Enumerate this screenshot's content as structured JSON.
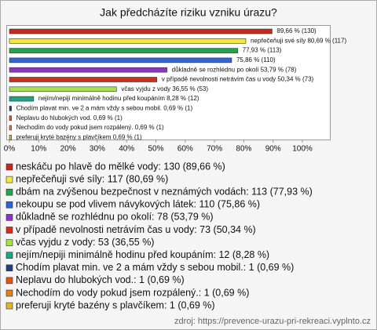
{
  "chart_data": {
    "type": "bar",
    "orientation": "horizontal",
    "title": "Jak předcházíte riziku vzniku úrazu?",
    "categories": [
      "neskáču po hlavě do mělké vody",
      "nepřečeňuji své síly",
      "dbám na zvýšenou bezpečnost v neznámých vodách",
      "nekoupu se pod vlivem návykových látek",
      "důkladně se rozhlédnu po okolí",
      "v případě nevolnosti netrávím čas u vody",
      "včas vyjdu z vody",
      "nejím/nepiji minimálně hodinu před koupáním",
      "Chodím plavat min. ve 2 a mám vždy s sebou mobil.",
      "Neplavu do hlubokých vod.",
      "Nechodím do vody pokud jsem rozpálený.",
      "preferuji kryté bazény s plavčíkem"
    ],
    "values": [
      89.66,
      80.69,
      77.93,
      75.86,
      53.79,
      50.34,
      36.55,
      8.28,
      0.69,
      0.69,
      0.69,
      0.69
    ],
    "value_labels": [
      "89,66 % (130)",
      "nepřečeňuji své síly 80,69 % (117)",
      "77,93 % (113)",
      "75,86 % (110)",
      "důkladně se rozhlédnu po okolí 53,79 % (78)",
      "v případě nevolnosti netrávím čas u vody 50,34 % (73)",
      "včas vyjdu z vody 36,55 % (53)",
      "nejím/nepiji minimálně hodinu před koupáním 8,28 % (12)",
      "Chodím plavat min. ve 2 a mám vždy s sebou mobil. 0,69 % (1)",
      "Neplavu do hlubokých vod. 0,69 % (1)",
      "Nechodím do vody pokud jsem rozpálený. 0,69 % (1)",
      "preferuji kryté bazény s plavčíkem 0,69 % (1)"
    ],
    "legend_labels": [
      "neskáču po hlavě do mělké vody: 130 (89,66 %)",
      "nepřečeňuji své síly: 117 (80,69 %)",
      "dbám na zvýšenou bezpečnost v neznámých vodách: 113 (77,93 %)",
      "nekoupu se pod vlivem návykových látek: 110 (75,86 %)",
      "důkladně se rozhlédnu po okolí: 78 (53,79 %)",
      "v případě nevolnosti netrávím čas u vody: 73 (50,34 %)",
      "včas vyjdu z vody: 53 (36,55 %)",
      "nejím/nepiji minimálně hodinu před koupáním: 12 (8,28 %)",
      "Chodím plavat min. ve 2 a mám vždy s sebou mobil.: 1 (0,69 %)",
      "Neplavu do hlubokých vod.: 1 (0,69 %)",
      "Nechodím do vody pokud jsem rozpálený.: 1 (0,69 %)",
      "preferuji kryté bazény s plavčíkem: 1 (0,69 %)"
    ],
    "colors": [
      "#c8281c",
      "#f0e648",
      "#2aa04c",
      "#3264d2",
      "#8e34c2",
      "#d0301a",
      "#a6e04a",
      "#22a282",
      "#23407e",
      "#e0561a",
      "#e0801e",
      "#e2b226"
    ],
    "xlim": [
      0,
      100
    ],
    "xticks": [
      {
        "value": 0,
        "label": "0%"
      },
      {
        "value": 10,
        "label": "10%"
      },
      {
        "value": 20,
        "label": "20%"
      },
      {
        "value": 30,
        "label": "30%"
      },
      {
        "value": 40,
        "label": "40%"
      },
      {
        "value": 50,
        "label": "50%"
      },
      {
        "value": 60,
        "label": "60%"
      },
      {
        "value": 70,
        "label": "70%"
      },
      {
        "value": 80,
        "label": "80%"
      },
      {
        "value": 90,
        "label": "90%"
      },
      {
        "value": 100,
        "label": "100%"
      }
    ],
    "grid": false,
    "source": "zdroj: https://prevence-urazu-pri-rekreaci.vyplnto.cz"
  }
}
